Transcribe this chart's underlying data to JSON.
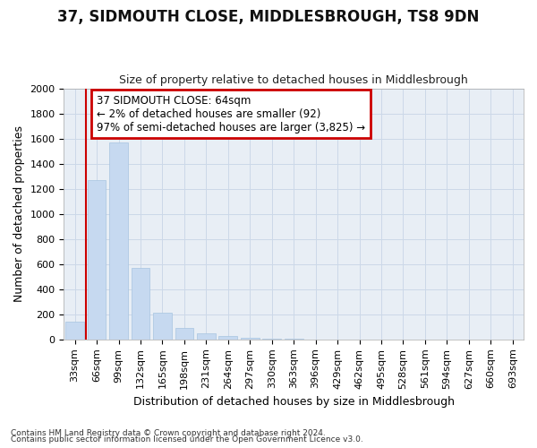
{
  "title": "37, SIDMOUTH CLOSE, MIDDLESBROUGH, TS8 9DN",
  "subtitle": "Size of property relative to detached houses in Middlesbrough",
  "xlabel": "Distribution of detached houses by size in Middlesbrough",
  "ylabel": "Number of detached properties",
  "footnote1": "Contains HM Land Registry data © Crown copyright and database right 2024.",
  "footnote2": "Contains public sector information licensed under the Open Government Licence v3.0.",
  "bar_labels": [
    "33sqm",
    "66sqm",
    "99sqm",
    "132sqm",
    "165sqm",
    "198sqm",
    "231sqm",
    "264sqm",
    "297sqm",
    "330sqm",
    "363sqm",
    "396sqm",
    "429sqm",
    "462sqm",
    "495sqm",
    "528sqm",
    "561sqm",
    "594sqm",
    "627sqm",
    "660sqm",
    "693sqm"
  ],
  "bar_values": [
    140,
    1270,
    1570,
    570,
    215,
    95,
    50,
    30,
    15,
    5,
    3,
    2,
    1,
    1,
    1,
    0,
    0,
    0,
    0,
    0,
    0
  ],
  "bar_color": "#c6d9f0",
  "bar_edge_color": "#a8c4e0",
  "ylim": [
    0,
    2000
  ],
  "yticks": [
    0,
    200,
    400,
    600,
    800,
    1000,
    1200,
    1400,
    1600,
    1800,
    2000
  ],
  "annotation_line1": "37 SIDMOUTH CLOSE: 64sqm",
  "annotation_line2": "← 2% of detached houses are smaller (92)",
  "annotation_line3": "97% of semi-detached houses are larger (3,825) →",
  "annotation_box_edgecolor": "#cc0000",
  "vline_color": "#cc0000",
  "vline_x": 0.5,
  "grid_color": "#ccd8e8",
  "background_color": "#e8eef5",
  "title_fontsize": 12,
  "subtitle_fontsize": 9,
  "axis_label_fontsize": 9,
  "tick_fontsize": 8,
  "footnote_fontsize": 6.5
}
